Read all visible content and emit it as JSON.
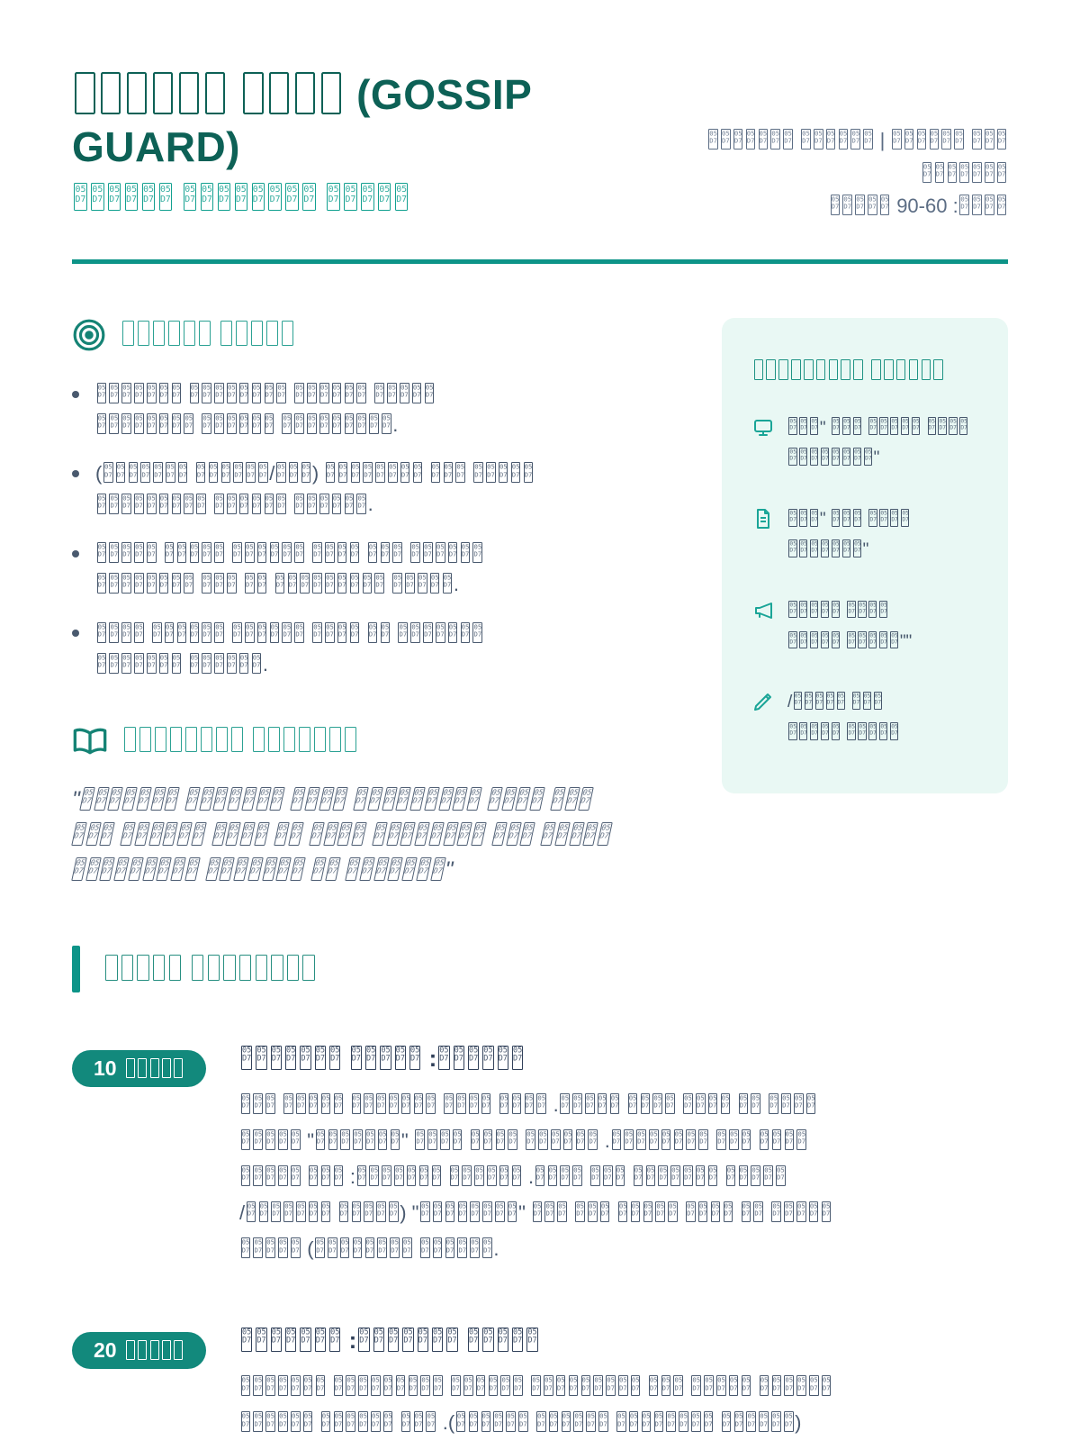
{
  "colors": {
    "accent_teal": "#0d9488",
    "dark_teal_title": "#0d6156",
    "subtitle_teal": "#12a090",
    "badge_teal": "#12897c",
    "sidebar_bg": "#e9f8f4",
    "body_slate": "#49596e",
    "meta_slate": "#5c6d84",
    "heading_teal": "#1e9384"
  },
  "header": {
    "title": "□□□□□□ □□□□ (GOSSIP GUARD)",
    "subtitle": "□□□□□□ □□□□□□□□ □□□□□",
    "meta_lines": [
      "□□□□□□□ □□□□□□ | □□□□□□ □□□",
      "□□□□□□□",
      "□□□□□ 90-60 :□□□□"
    ]
  },
  "goals": {
    "heading": "□□□□□□ □□□□□",
    "icon": "target-icon",
    "bullets": [
      {
        "lines": [
          "□□□□□□□ □□□□□□□□ □□□□□□ □□□□□",
          "□□□□□□□□ □□□□□□ □□□□□□□□□."
        ]
      },
      {
        "lines": [
          "(□□□□□□□ □□□□□□/□□□) □□□□□□□□ □□□ □□□□□",
          "□□□□□□□□□ □□□□□□ □□□□□□."
        ]
      },
      {
        "lines": [
          "□□□□□ □□□□□ □□□□□□ □□□□ □□□ □□□□□□",
          "□□□□□□□□ □□□ □□ □□□□□□□□□ □□□□□."
        ]
      },
      {
        "lines": [
          "□□□□ □□□□□□ □□□□□□ □□□□ □□ □□□□□□□",
          "□□□□□□□ □□□□□□."
        ]
      }
    ]
  },
  "materials": {
    "heading": "□□□□□□□□□ □□□□□□",
    "items": [
      {
        "icon": "monitor-icon",
        "lines": [
          "□□□\" □□□ □□□□□ □□□□",
          "□□□□□□□□\""
        ]
      },
      {
        "icon": "document-icon",
        "lines": [
          "□□□\" □□□ □□□□",
          "□□□□□□□\""
        ]
      },
      {
        "icon": "megaphone-icon",
        "lines": [
          "□□□□□ □□□□",
          "□□□□□ □□□□□\"\""
        ]
      },
      {
        "icon": "pencil-icon",
        "lines": [
          "/□□□□□ □□□",
          "□□□□□ □□□□□"
        ]
      }
    ]
  },
  "quote": {
    "heading": "□□□□□□□□ □□□□□□□",
    "icon": "book-open-icon",
    "lines": [
      "\"□□□□□□□ □□□□□□□ □□□□ □□□□□□□□□ □□□□ □□□",
      "□□□ □□□□□□ □□□□ □□ □□□□ □□□□□□□□ □□□ □□□□□",
      "□□□□□□□□□ □□□□□□□ □□ □□□□□□□\""
    ]
  },
  "plan": {
    "heading": "□□□□□ □□□□□□□□",
    "items": [
      {
        "badge_num": "10",
        "badge_unit": "□□□□□",
        "heading": "□□□□□□□ □□□□□ :□□□□□□",
        "lines": [
          "□□□ □□□□□ □□□□□□□ □□□□ □□□□ .□□□□□ □□□□ □□□□ □□ □□□□",
          "□□□□□ \"□□□□□□□\" □□□□ □□□□ □□□□□□ .□□□□□□□□ □□□ □□□□",
          "□□□□□ □□□ :□□□□□□□ □□□□□□ .□□□□ □□□ □□□□□□□ □□□□□",
          "/□□□□□□□ □□□□□) \"□□□□□□□□\" □□□ □□□ □□□□□ □□□□ □□ □□□□□",
          "□□□□□ (□□□□□□□□ □□□□□□."
        ]
      },
      {
        "badge_num": "20",
        "badge_unit": "□□□□□",
        "heading": "□□□□□□□ :□□□□□□□ □□□□□",
        "lines": [
          "□□□□□□□ □□□□□□□□□ □□□□□□ □□□□□□□□□ □□□ □□□□□ □□□□□□",
          "□□□□□□ □□□□□□ □□□ .(□□□□□□ □□□□□□ □□□□□□□□ □□□□□□)"
        ]
      }
    ]
  }
}
